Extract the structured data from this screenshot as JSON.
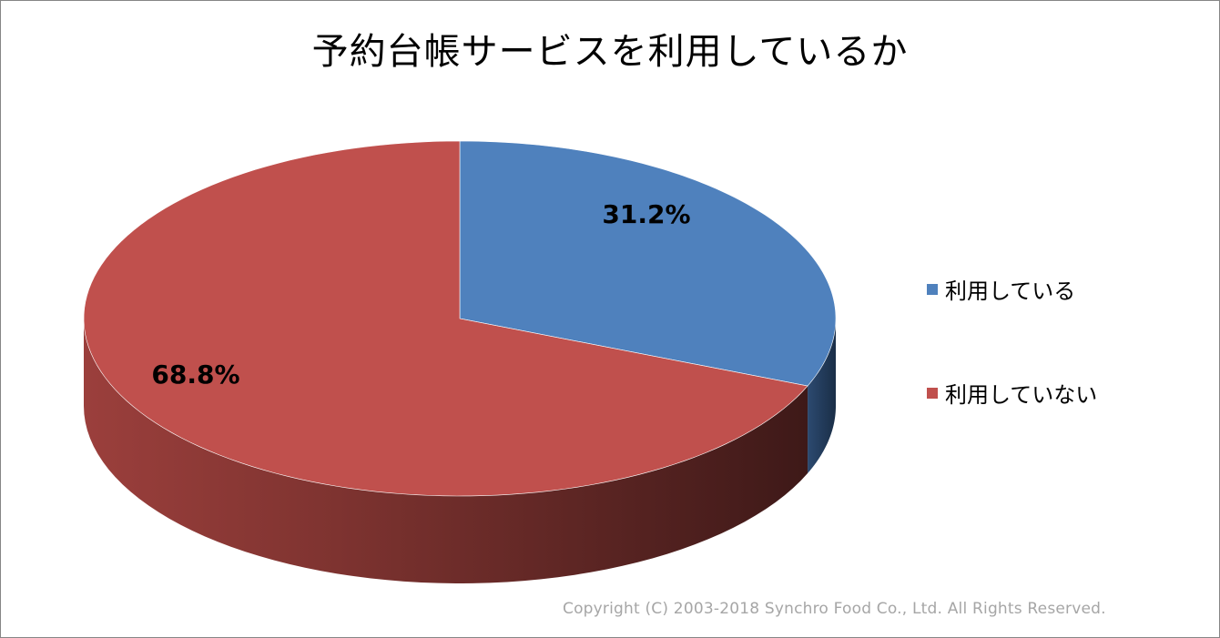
{
  "chart_data": {
    "type": "pie",
    "title": "予約台帳サービスを利用しているか",
    "categories": [
      "利用している",
      "利用していない"
    ],
    "values": [
      31.2,
      68.8
    ],
    "data_labels": [
      "31.2%",
      "68.8%"
    ],
    "colors": [
      "#4f81bd",
      "#c0504d"
    ],
    "legend_position": "right",
    "three_d": true
  },
  "footer": {
    "copyright": "Copyright (C) 2003-2018  Synchro Food Co., Ltd. All Rights Reserved."
  }
}
